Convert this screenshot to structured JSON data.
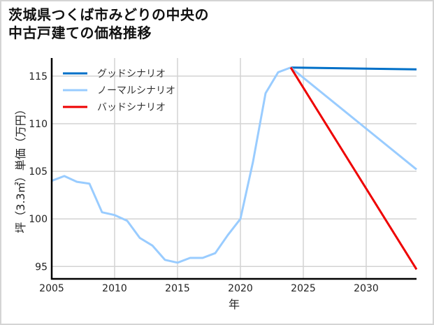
{
  "chart_data": {
    "type": "line",
    "title": "茨城県つくば市みどりの中央の中古戸建ての価格推移",
    "title_lines": [
      "茨城県つくば市みどりの中央の",
      "中古戸建ての価格推移"
    ],
    "xlabel": "年",
    "ylabel": "坪（3.3㎡）単価（万円）",
    "xlim": [
      2005,
      2034
    ],
    "ylim": [
      93.7,
      116.9
    ],
    "xticks": [
      2005,
      2010,
      2015,
      2020,
      2025,
      2030
    ],
    "yticks": [
      95,
      100,
      105,
      110,
      115
    ],
    "grid": true,
    "legend_position": "upper left",
    "series": [
      {
        "name": "グッドシナリオ",
        "color": "#0070c8",
        "x": [
          2024,
          2034
        ],
        "values": [
          115.9,
          115.7
        ]
      },
      {
        "name": "ノーマルシナリオ",
        "color": "#99ccff",
        "x": [
          2005,
          2006,
          2007,
          2008,
          2009,
          2010,
          2011,
          2012,
          2013,
          2014,
          2015,
          2016,
          2017,
          2018,
          2019,
          2020,
          2021,
          2022,
          2023,
          2024,
          2034
        ],
        "values": [
          104.0,
          104.5,
          103.9,
          103.7,
          100.7,
          100.4,
          99.8,
          98.0,
          97.2,
          95.7,
          95.4,
          95.9,
          95.9,
          96.4,
          98.3,
          100.0,
          106.0,
          113.2,
          115.4,
          115.9,
          105.2
        ]
      },
      {
        "name": "バッドシナリオ",
        "color": "#ee0000",
        "x": [
          2024,
          2034
        ],
        "values": [
          115.9,
          94.7
        ]
      }
    ]
  }
}
